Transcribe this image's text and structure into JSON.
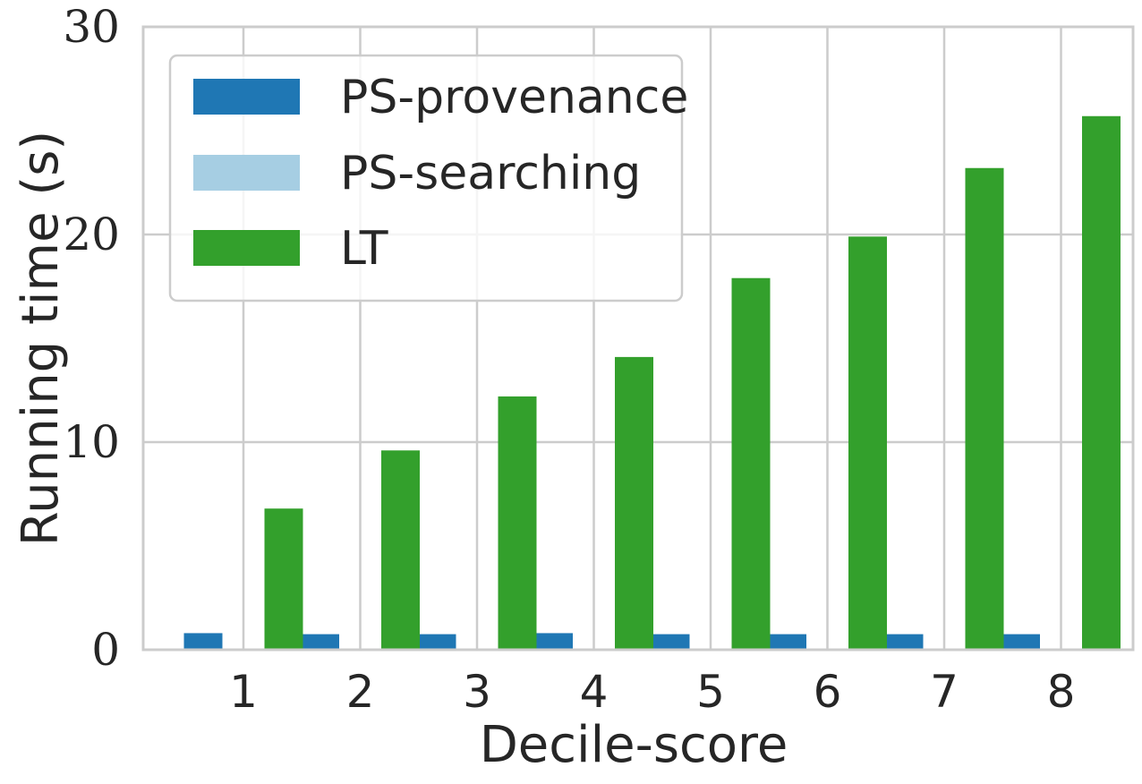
{
  "chart_data": {
    "type": "bar",
    "xlabel": "Decile-score",
    "ylabel": "Running time (s)",
    "categories": [
      "1",
      "2",
      "3",
      "4",
      "5",
      "6",
      "7",
      "8"
    ],
    "ylim": [
      0,
      30
    ],
    "yticks": [
      0,
      10,
      20,
      30
    ],
    "grid": true,
    "legend_position": "top-left",
    "series": [
      {
        "name": "PS-provenance",
        "color": "#1f77b4",
        "values": [
          0.8,
          0.75,
          0.75,
          0.8,
          0.75,
          0.75,
          0.75,
          0.75
        ]
      },
      {
        "name": "PS-searching",
        "color": "#a6cee3",
        "values": [
          0,
          0,
          0,
          0,
          0,
          0,
          0,
          0
        ]
      },
      {
        "name": "LT",
        "color": "#33a02c",
        "values": [
          6.8,
          9.6,
          12.2,
          14.1,
          17.9,
          19.9,
          23.2,
          25.7
        ]
      }
    ]
  }
}
